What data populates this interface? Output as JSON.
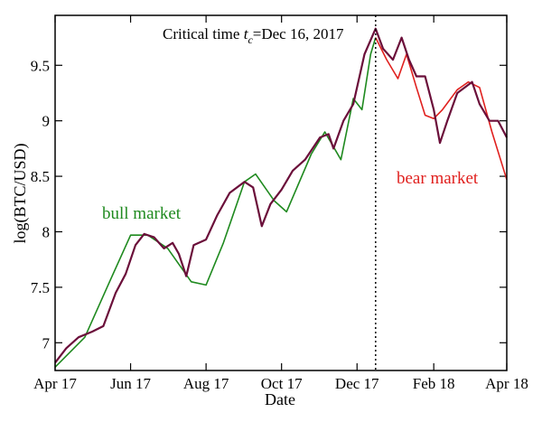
{
  "chart_data": {
    "type": "line",
    "xlabel": "Date",
    "ylabel": "log(BTC/USD)",
    "x_range": [
      "2017-04-01",
      "2018-04-01"
    ],
    "ylim": [
      6.75,
      9.95
    ],
    "x_ticks": [
      {
        "label": "Apr 17",
        "date": "2017-04-01"
      },
      {
        "label": "Jun 17",
        "date": "2017-06-01"
      },
      {
        "label": "Aug 17",
        "date": "2017-08-01"
      },
      {
        "label": "Oct 17",
        "date": "2017-10-01"
      },
      {
        "label": "Dec 17",
        "date": "2017-12-01"
      },
      {
        "label": "Feb 18",
        "date": "2018-02-01"
      },
      {
        "label": "Apr 18",
        "date": "2018-04-01"
      }
    ],
    "y_ticks": [
      7,
      7.5,
      8,
      8.5,
      9,
      9.5
    ],
    "y_tick_labels": [
      "7",
      "7.5",
      "8",
      "8.5",
      "9",
      "9.5"
    ],
    "critical_time": {
      "date": "2017-12-16",
      "label_prefix": "Critical time ",
      "label_var": "t",
      "label_sub": "c",
      "label_suffix": "=Dec 16, 2017"
    },
    "annotations": {
      "bull": "bull market",
      "bear": "bear market"
    },
    "colors": {
      "price": "#6b0f3a",
      "bull": "#1f8a1f",
      "bear": "#e0201e",
      "axis": "#000000"
    },
    "series": [
      {
        "role": "price",
        "points": [
          [
            "2017-04-01",
            6.82
          ],
          [
            "2017-04-10",
            6.95
          ],
          [
            "2017-04-20",
            7.05
          ],
          [
            "2017-05-01",
            7.1
          ],
          [
            "2017-05-10",
            7.15
          ],
          [
            "2017-05-20",
            7.45
          ],
          [
            "2017-05-28",
            7.62
          ],
          [
            "2017-06-05",
            7.88
          ],
          [
            "2017-06-12",
            7.98
          ],
          [
            "2017-06-20",
            7.95
          ],
          [
            "2017-06-28",
            7.85
          ],
          [
            "2017-07-05",
            7.9
          ],
          [
            "2017-07-10",
            7.8
          ],
          [
            "2017-07-16",
            7.6
          ],
          [
            "2017-07-22",
            7.88
          ],
          [
            "2017-08-01",
            7.93
          ],
          [
            "2017-08-10",
            8.15
          ],
          [
            "2017-08-20",
            8.35
          ],
          [
            "2017-09-01",
            8.45
          ],
          [
            "2017-09-08",
            8.4
          ],
          [
            "2017-09-15",
            8.05
          ],
          [
            "2017-09-22",
            8.25
          ],
          [
            "2017-10-01",
            8.38
          ],
          [
            "2017-10-10",
            8.55
          ],
          [
            "2017-10-20",
            8.65
          ],
          [
            "2017-11-01",
            8.85
          ],
          [
            "2017-11-08",
            8.88
          ],
          [
            "2017-11-12",
            8.75
          ],
          [
            "2017-11-20",
            9.0
          ],
          [
            "2017-11-28",
            9.15
          ],
          [
            "2017-12-07",
            9.6
          ],
          [
            "2017-12-16",
            9.83
          ],
          [
            "2017-12-22",
            9.65
          ],
          [
            "2017-12-30",
            9.55
          ],
          [
            "2018-01-06",
            9.75
          ],
          [
            "2018-01-12",
            9.55
          ],
          [
            "2018-01-18",
            9.4
          ],
          [
            "2018-01-25",
            9.4
          ],
          [
            "2018-02-01",
            9.1
          ],
          [
            "2018-02-06",
            8.8
          ],
          [
            "2018-02-12",
            9.0
          ],
          [
            "2018-02-20",
            9.25
          ],
          [
            "2018-03-04",
            9.35
          ],
          [
            "2018-03-10",
            9.15
          ],
          [
            "2018-03-18",
            9.0
          ],
          [
            "2018-03-25",
            9.0
          ],
          [
            "2018-04-01",
            8.85
          ]
        ]
      },
      {
        "role": "bull",
        "points": [
          [
            "2017-04-01",
            6.78
          ],
          [
            "2017-04-25",
            7.05
          ],
          [
            "2017-05-15",
            7.55
          ],
          [
            "2017-06-01",
            7.97
          ],
          [
            "2017-06-15",
            7.97
          ],
          [
            "2017-07-01",
            7.85
          ],
          [
            "2017-07-20",
            7.55
          ],
          [
            "2017-08-01",
            7.52
          ],
          [
            "2017-08-15",
            7.9
          ],
          [
            "2017-09-01",
            8.45
          ],
          [
            "2017-09-10",
            8.52
          ],
          [
            "2017-09-25",
            8.28
          ],
          [
            "2017-10-05",
            8.18
          ],
          [
            "2017-10-25",
            8.7
          ],
          [
            "2017-11-05",
            8.9
          ],
          [
            "2017-11-18",
            8.65
          ],
          [
            "2017-11-28",
            9.2
          ],
          [
            "2017-12-05",
            9.1
          ],
          [
            "2017-12-12",
            9.6
          ],
          [
            "2017-12-16",
            9.75
          ]
        ]
      },
      {
        "role": "bear",
        "points": [
          [
            "2017-12-16",
            9.75
          ],
          [
            "2017-12-25",
            9.55
          ],
          [
            "2018-01-03",
            9.38
          ],
          [
            "2018-01-10",
            9.6
          ],
          [
            "2018-01-18",
            9.3
          ],
          [
            "2018-01-25",
            9.05
          ],
          [
            "2018-02-01",
            9.02
          ],
          [
            "2018-02-08",
            9.1
          ],
          [
            "2018-02-20",
            9.28
          ],
          [
            "2018-03-01",
            9.35
          ],
          [
            "2018-03-10",
            9.3
          ],
          [
            "2018-03-20",
            8.9
          ],
          [
            "2018-04-01",
            8.47
          ]
        ]
      }
    ]
  }
}
